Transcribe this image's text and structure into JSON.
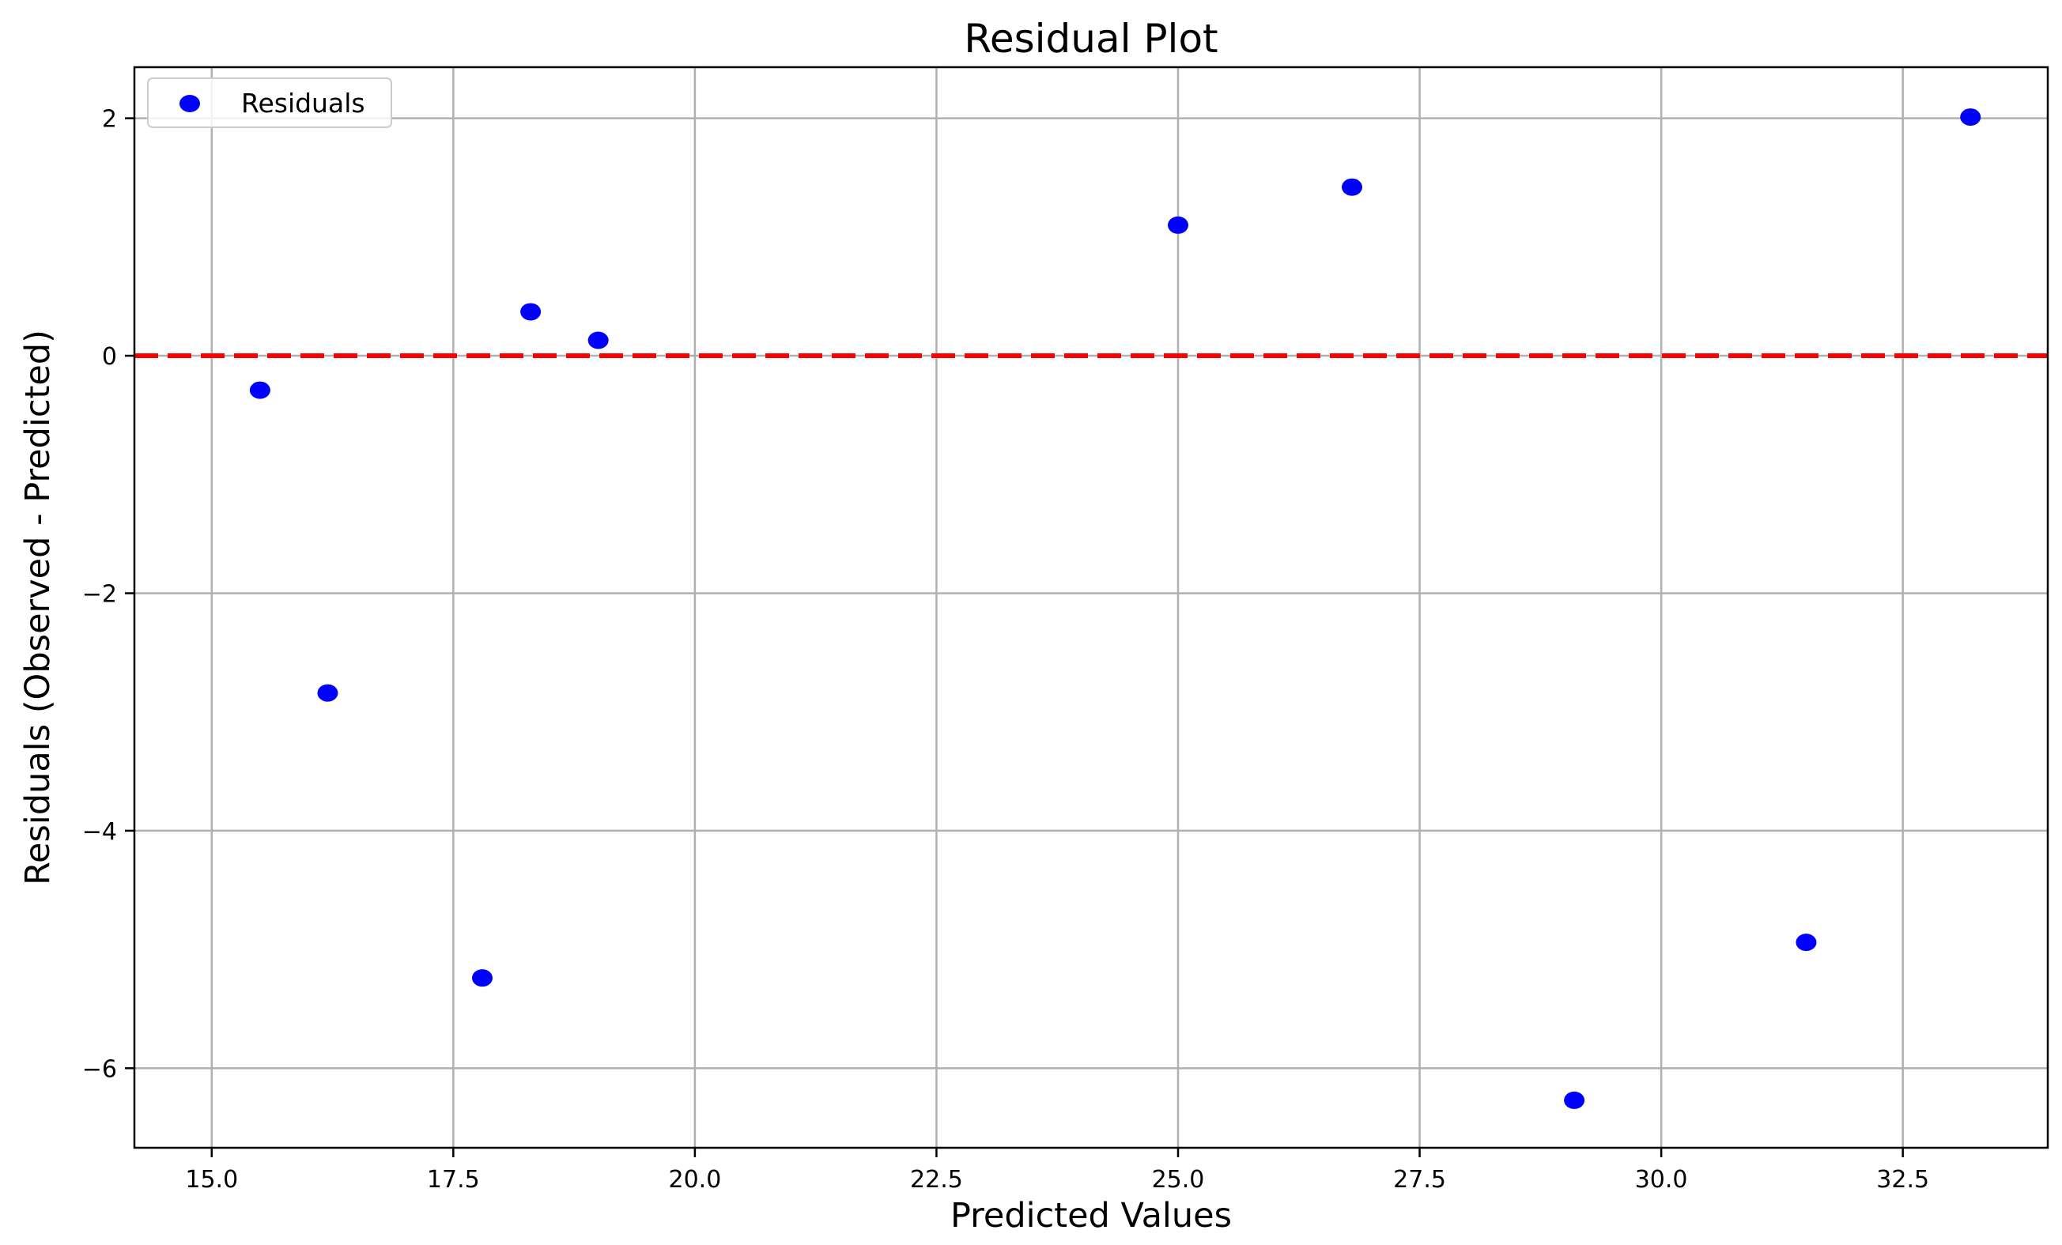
{
  "chart_data": {
    "type": "scatter",
    "title": "Residual Plot",
    "xlabel": "Predicted Values",
    "ylabel": "Residuals (Observed - Predicted)",
    "xlim": [
      14.2,
      34.0
    ],
    "ylim": [
      -6.67,
      2.43
    ],
    "xticks": [
      15.0,
      17.5,
      20.0,
      22.5,
      25.0,
      27.5,
      30.0,
      32.5
    ],
    "xtick_labels": [
      "15.0",
      "17.5",
      "20.0",
      "22.5",
      "25.0",
      "27.5",
      "30.0",
      "32.5"
    ],
    "yticks": [
      2,
      0,
      -2,
      -4,
      -6
    ],
    "ytick_labels": [
      "2",
      "0",
      "−2",
      "−4",
      "−6"
    ],
    "grid": true,
    "legend": "top-left",
    "series": [
      {
        "name": "Residuals",
        "color": "#0000ff",
        "x": [
          15.5,
          16.2,
          17.8,
          18.3,
          19.0,
          25.0,
          26.8,
          29.1,
          31.5,
          33.2
        ],
        "y": [
          -0.29,
          -2.84,
          -5.24,
          0.37,
          0.13,
          1.1,
          1.42,
          -6.27,
          -4.94,
          2.01
        ]
      }
    ],
    "reference_line": {
      "y": 0,
      "color": "#ff0000",
      "style": "dashed"
    }
  }
}
